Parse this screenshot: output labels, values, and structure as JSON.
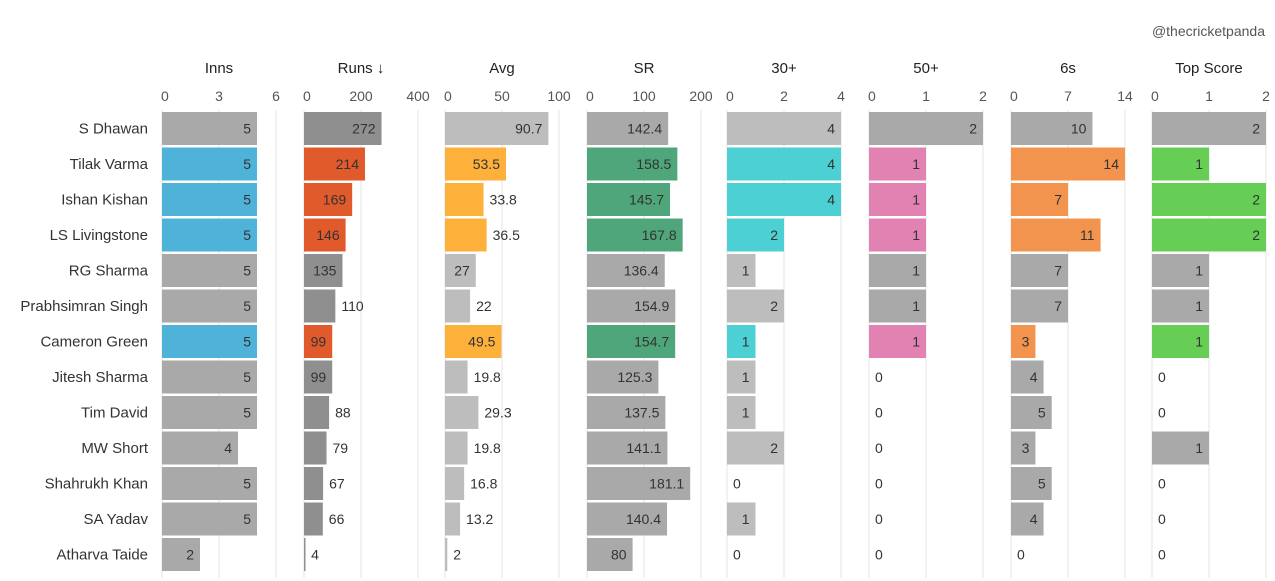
{
  "watermark": "@thecricketpanda",
  "chart_data": {
    "type": "bar",
    "orientation": "horizontal",
    "players": [
      "S Dhawan",
      "Tilak Varma",
      "Ishan Kishan",
      "LS Livingstone",
      "RG Sharma",
      "Prabhsimran Singh",
      "Cameron Green",
      "Jitesh Sharma",
      "Tim David",
      "MW Short",
      "Shahrukh Khan",
      "SA Yadav",
      "Atharva Taide"
    ],
    "colors": {
      "gray_light": "#bdbdbd",
      "gray_mid": "#a9a9a9",
      "gray_dark": "#8f8f8f",
      "Inns": "#4fb3d9",
      "Runs ↓": "#e05a2b",
      "Avg": "#fdb03a",
      "SR": "#4fa67a",
      "30+": "#4dd0d3",
      "50+": "#e282b2",
      "6s": "#f2944d",
      "Top Score": "#66cd55"
    },
    "highlighted_players": [
      "Tilak Varma",
      "Ishan Kishan",
      "LS Livingstone",
      "Cameron Green"
    ],
    "columns": [
      {
        "title": "Inns",
        "ticks": [
          "0",
          "3",
          "6"
        ],
        "max": 6,
        "values": [
          5,
          5,
          5,
          5,
          5,
          5,
          5,
          5,
          5,
          4,
          5,
          5,
          2
        ],
        "labels": [
          "5",
          "5",
          "5",
          "5",
          "5",
          "5",
          "5",
          "5",
          "5",
          "4",
          "5",
          "5",
          "2"
        ]
      },
      {
        "title": "Runs ↓",
        "ticks": [
          "0",
          "200",
          "400"
        ],
        "max": 400,
        "values": [
          272,
          214,
          169,
          146,
          135,
          110,
          99,
          99,
          88,
          79,
          67,
          66,
          4
        ],
        "labels": [
          "272",
          "214",
          "169",
          "146",
          "135",
          "110",
          "99",
          "99",
          "88",
          "79",
          "67",
          "66",
          "4"
        ]
      },
      {
        "title": "Avg",
        "ticks": [
          "0",
          "50",
          "100"
        ],
        "max": 100,
        "values": [
          90.7,
          53.5,
          33.8,
          36.5,
          27,
          22,
          49.5,
          19.8,
          29.3,
          19.8,
          16.8,
          13.2,
          2
        ],
        "labels": [
          "90.7",
          "53.5",
          "33.8",
          "36.5",
          "27",
          "22",
          "49.5",
          "19.8",
          "29.3",
          "19.8",
          "16.8",
          "13.2",
          "2"
        ]
      },
      {
        "title": "SR",
        "ticks": [
          "0",
          "100",
          "200"
        ],
        "max": 200,
        "values": [
          142.4,
          158.5,
          145.7,
          167.8,
          136.4,
          154.9,
          154.7,
          125.3,
          137.5,
          141.1,
          181.1,
          140.4,
          80
        ],
        "labels": [
          "142.4",
          "158.5",
          "145.7",
          "167.8",
          "136.4",
          "154.9",
          "154.7",
          "125.3",
          "137.5",
          "141.1",
          "181.1",
          "140.4",
          "80"
        ]
      },
      {
        "title": "30+",
        "ticks": [
          "0",
          "2",
          "4"
        ],
        "max": 4,
        "values": [
          4,
          4,
          4,
          2,
          1,
          2,
          1,
          1,
          1,
          2,
          0,
          1,
          0
        ],
        "labels": [
          "4",
          "4",
          "4",
          "2",
          "1",
          "2",
          "1",
          "1",
          "1",
          "2",
          "0",
          "1",
          "0"
        ]
      },
      {
        "title": "50+",
        "ticks": [
          "0",
          "1",
          "2"
        ],
        "max": 2,
        "values": [
          2,
          1,
          1,
          1,
          1,
          1,
          1,
          0,
          0,
          0,
          0,
          0,
          0
        ],
        "labels": [
          "2",
          "1",
          "1",
          "1",
          "1",
          "1",
          "1",
          "0",
          "0",
          "0",
          "0",
          "0",
          "0"
        ]
      },
      {
        "title": "6s",
        "ticks": [
          "0",
          "7",
          "14"
        ],
        "max": 14,
        "values": [
          10,
          14,
          7,
          11,
          7,
          7,
          3,
          4,
          5,
          3,
          5,
          4,
          0
        ],
        "labels": [
          "10",
          "14",
          "7",
          "11",
          "7",
          "7",
          "3",
          "4",
          "5",
          "3",
          "5",
          "4",
          "0"
        ]
      },
      {
        "title": "Top Score",
        "ticks": [
          "0",
          "1",
          "2"
        ],
        "max": 2,
        "values": [
          2,
          1,
          2,
          2,
          1,
          1,
          1,
          0,
          0,
          1,
          0,
          0,
          0
        ],
        "labels": [
          "2",
          "1",
          "2",
          "2",
          "1",
          "1",
          "1",
          "0",
          "0",
          "1",
          "0",
          "0",
          "0"
        ]
      }
    ]
  }
}
